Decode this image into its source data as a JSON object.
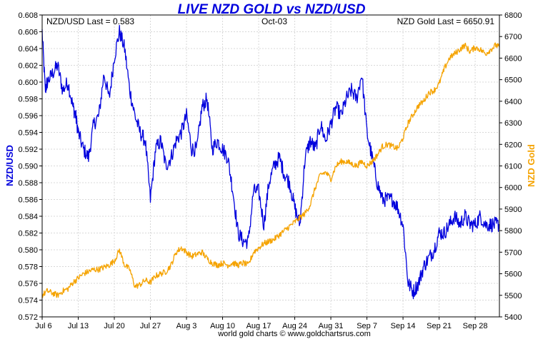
{
  "chart_data": {
    "type": "line",
    "title": "LIVE NZD GOLD vs NZD/USD",
    "subtitle_left": "NZD/USD Last = 0.583",
    "subtitle_center": "Oct-03",
    "subtitle_right": "NZD Gold Last = 6650.91",
    "credit": "world gold charts © www.goldchartsrus.com",
    "x_tick_labels": [
      "Jul 6",
      "Jul 13",
      "Jul 20",
      "Jul 27",
      "Aug 3",
      "Aug 10",
      "Aug 17",
      "Aug 24",
      "Aug 31",
      "Sep 7",
      "Sep 14",
      "Sep 21",
      "Sep 28"
    ],
    "left_axis": {
      "label": "NZD/USD",
      "ylim": [
        0.572,
        0.608
      ],
      "ticks": [
        "0.572",
        "0.574",
        "0.576",
        "0.578",
        "0.580",
        "0.582",
        "0.584",
        "0.586",
        "0.588",
        "0.590",
        "0.592",
        "0.594",
        "0.596",
        "0.598",
        "0.600",
        "0.602",
        "0.604",
        "0.606",
        "0.608"
      ]
    },
    "right_axis": {
      "label": "NZD Gold",
      "ylim": [
        5400,
        6800
      ],
      "ticks": [
        "5400",
        "5500",
        "5600",
        "5700",
        "5800",
        "5900",
        "6000",
        "6100",
        "6200",
        "6300",
        "6400",
        "6500",
        "6600",
        "6700",
        "6800"
      ]
    },
    "series": [
      {
        "name": "NZD/USD",
        "axis": "left",
        "color": "#0000dd",
        "x_days": [
          0,
          0.6,
          1,
          2,
          3,
          4,
          5,
          6,
          6.5,
          7,
          8,
          9,
          10,
          11,
          12,
          13,
          14,
          15,
          16,
          17,
          18,
          19,
          20,
          21,
          22,
          23,
          24,
          25,
          26,
          27,
          28,
          29,
          30,
          31,
          32,
          33,
          34,
          35,
          36,
          37,
          38,
          39,
          40,
          41,
          42,
          43,
          44,
          45,
          46,
          47,
          48,
          49,
          50,
          51,
          52,
          53,
          54,
          55,
          56,
          57,
          58,
          59,
          60,
          61,
          62,
          63,
          64,
          65,
          66,
          67,
          68,
          69,
          70,
          71,
          72,
          73,
          74,
          75,
          76,
          77,
          78,
          79,
          80,
          81,
          82,
          83,
          84,
          85,
          86,
          87,
          88,
          88.7
        ],
        "values": [
          0.606,
          0.599,
          0.6,
          0.601,
          0.602,
          0.599,
          0.6,
          0.597,
          0.596,
          0.594,
          0.592,
          0.591,
          0.595,
          0.596,
          0.601,
          0.598,
          0.603,
          0.606,
          0.604,
          0.599,
          0.596,
          0.594,
          0.593,
          0.586,
          0.592,
          0.593,
          0.59,
          0.591,
          0.593,
          0.594,
          0.596,
          0.592,
          0.592,
          0.597,
          0.598,
          0.592,
          0.593,
          0.592,
          0.591,
          0.587,
          0.582,
          0.581,
          0.581,
          0.587,
          0.587,
          0.583,
          0.588,
          0.59,
          0.591,
          0.589,
          0.588,
          0.585,
          0.583,
          0.591,
          0.593,
          0.592,
          0.595,
          0.593,
          0.595,
          0.597,
          0.596,
          0.598,
          0.599,
          0.598,
          0.601,
          0.594,
          0.591,
          0.588,
          0.586,
          0.586,
          0.586,
          0.585,
          0.583,
          0.576,
          0.575,
          0.576,
          0.578,
          0.579,
          0.58,
          0.582,
          0.582,
          0.583,
          0.584,
          0.583,
          0.584,
          0.583,
          0.583,
          0.584,
          0.583,
          0.583,
          0.583,
          0.583
        ]
      },
      {
        "name": "NZD Gold",
        "axis": "right",
        "color": "#f5a300",
        "x_days": [
          0,
          1,
          2,
          3,
          4,
          5,
          6,
          7,
          8,
          9,
          10,
          11,
          12,
          13,
          14,
          15,
          16,
          17,
          18,
          19,
          20,
          21,
          22,
          23,
          24,
          25,
          26,
          27,
          28,
          29,
          30,
          31,
          32,
          33,
          34,
          35,
          36,
          37,
          38,
          39,
          40,
          41,
          42,
          43,
          44,
          45,
          46,
          47,
          48,
          49,
          50,
          51,
          52,
          53,
          54,
          55,
          56,
          57,
          58,
          59,
          60,
          61,
          62,
          63,
          64,
          65,
          66,
          67,
          68,
          69,
          70,
          71,
          72,
          73,
          74,
          75,
          76,
          77,
          78,
          79,
          80,
          81,
          82,
          83,
          84,
          85,
          86,
          87,
          88,
          88.7
        ],
        "values": [
          5500,
          5520,
          5510,
          5500,
          5520,
          5530,
          5560,
          5580,
          5600,
          5610,
          5620,
          5620,
          5630,
          5640,
          5660,
          5710,
          5640,
          5620,
          5540,
          5550,
          5570,
          5560,
          5590,
          5600,
          5610,
          5640,
          5700,
          5720,
          5700,
          5680,
          5690,
          5700,
          5670,
          5650,
          5640,
          5650,
          5640,
          5650,
          5640,
          5650,
          5640,
          5700,
          5720,
          5740,
          5750,
          5760,
          5780,
          5800,
          5820,
          5840,
          5860,
          5880,
          5920,
          6000,
          6060,
          6070,
          6040,
          6100,
          6120,
          6120,
          6110,
          6100,
          6120,
          6100,
          6120,
          6150,
          6190,
          6200,
          6190,
          6180,
          6230,
          6300,
          6340,
          6380,
          6400,
          6440,
          6450,
          6480,
          6550,
          6600,
          6620,
          6640,
          6660,
          6630,
          6650,
          6640,
          6620,
          6640,
          6660,
          6650
        ]
      }
    ]
  }
}
